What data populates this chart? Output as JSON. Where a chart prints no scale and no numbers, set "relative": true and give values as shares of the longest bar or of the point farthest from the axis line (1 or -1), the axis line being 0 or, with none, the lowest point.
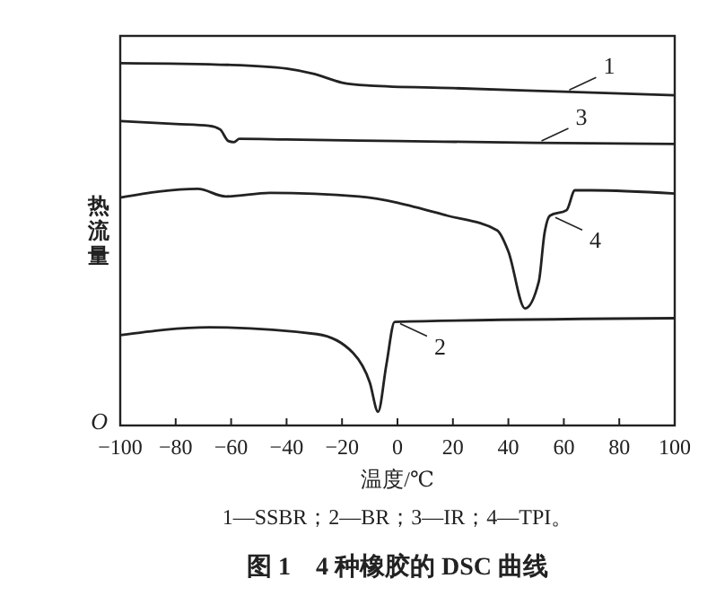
{
  "chart_data": {
    "type": "line",
    "relative": true,
    "title": "图 1　4 种橡胶的 DSC 曲线",
    "xlabel": "温度/℃",
    "ylabel": "热流量",
    "annotations": [
      "1—SSBR；2—BR；3—IR；4—TPI。",
      "O"
    ],
    "xlim": [
      -100,
      100
    ],
    "xticks": [
      -100,
      -80,
      -60,
      -40,
      -20,
      0,
      20,
      40,
      60,
      80,
      100
    ],
    "grid": false,
    "legend": "right",
    "marker": "none",
    "line_style": "solid",
    "series": [
      {
        "name": "1",
        "color": "#222222",
        "x": [
          -100,
          -60,
          -40,
          -30,
          -20,
          -10,
          20,
          60,
          100
        ],
        "values": [
          1.0,
          0.995,
          0.985,
          0.97,
          0.946,
          0.938,
          0.931,
          0.921,
          0.911
        ]
      },
      {
        "name": "3",
        "color": "#222222",
        "x": [
          -100,
          -80,
          -68,
          -64,
          -61,
          -59,
          -57,
          -40,
          0,
          50,
          100
        ],
        "values": [
          0.84,
          0.832,
          0.827,
          0.817,
          0.785,
          0.782,
          0.791,
          0.789,
          0.785,
          0.78,
          0.777
        ]
      },
      {
        "name": "4",
        "color": "#222222",
        "x": [
          -100,
          -72,
          -62,
          -46,
          -14,
          18,
          36,
          40,
          46,
          51,
          53,
          55,
          61,
          64,
          70,
          100
        ],
        "values": [
          0.629,
          0.653,
          0.632,
          0.642,
          0.632,
          0.579,
          0.538,
          0.48,
          0.323,
          0.398,
          0.529,
          0.579,
          0.594,
          0.649,
          0.649,
          0.64
        ]
      },
      {
        "name": "2",
        "color": "#222222",
        "x": [
          -100,
          -68,
          -29,
          -16,
          -10,
          -7,
          -4,
          -1,
          100
        ],
        "values": [
          0.249,
          0.271,
          0.252,
          0.2,
          0.119,
          0.038,
          0.168,
          0.286,
          0.296
        ]
      }
    ]
  }
}
